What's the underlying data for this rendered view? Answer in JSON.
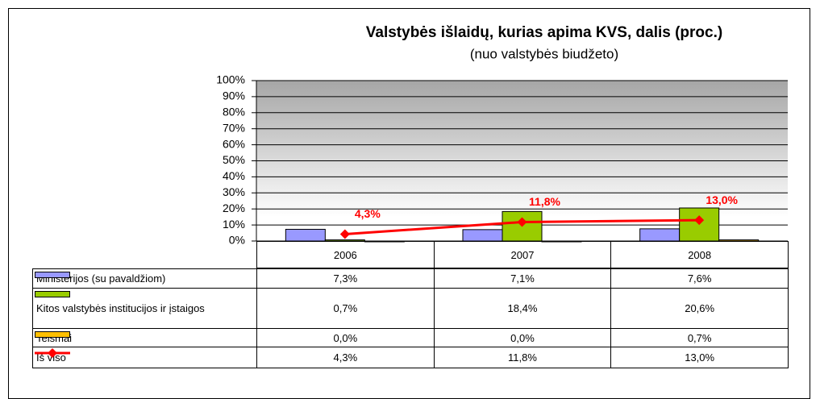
{
  "chart_data": {
    "type": "bar",
    "title": "Valstybės išlaidų, kurias apima KVS, dalis (proc.)",
    "subtitle": "(nuo valstybės biudžeto)",
    "categories": [
      "2006",
      "2007",
      "2008"
    ],
    "ylim": [
      0,
      100
    ],
    "yticks": [
      {
        "value": 0,
        "label": "0%"
      },
      {
        "value": 10,
        "label": "10%"
      },
      {
        "value": 20,
        "label": "20%"
      },
      {
        "value": 30,
        "label": "30%"
      },
      {
        "value": 40,
        "label": "40%"
      },
      {
        "value": 50,
        "label": "50%"
      },
      {
        "value": 60,
        "label": "60%"
      },
      {
        "value": 70,
        "label": "70%"
      },
      {
        "value": 80,
        "label": "80%"
      },
      {
        "value": 90,
        "label": "90%"
      },
      {
        "value": 100,
        "label": "100%"
      }
    ],
    "grid": true,
    "series": [
      {
        "name": "Ministerijos (su pavaldžiom)",
        "type": "bar",
        "color": "#9999ff",
        "values": [
          7.3,
          7.1,
          7.6
        ],
        "value_labels": [
          "7,3%",
          "7,1%",
          "7,6%"
        ]
      },
      {
        "name": "Kitos valstybės institucijos ir įstaigos",
        "type": "bar",
        "color": "#99cc00",
        "values": [
          0.7,
          18.4,
          20.6
        ],
        "value_labels": [
          "0,7%",
          "18,4%",
          "20,6%"
        ]
      },
      {
        "name": "Teismai",
        "type": "bar",
        "color": "#ffc000",
        "values": [
          0.0,
          0.0,
          0.7
        ],
        "value_labels": [
          "0,0%",
          "0,0%",
          "0,7%"
        ]
      },
      {
        "name": "Iš viso",
        "type": "line",
        "color": "#ff0000",
        "values": [
          4.3,
          11.8,
          13.0
        ],
        "value_labels": [
          "4,3%",
          "11,8%",
          "13,0%"
        ]
      }
    ]
  }
}
